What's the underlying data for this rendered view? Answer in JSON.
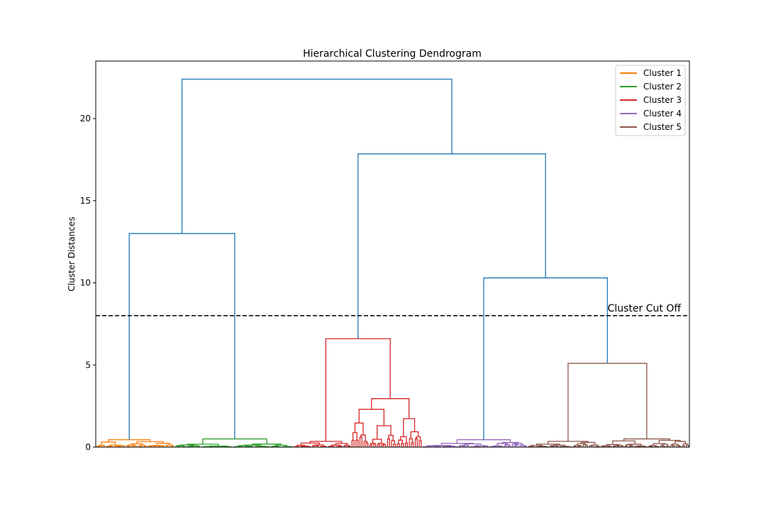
{
  "chart_data": {
    "type": "dendrogram",
    "title": "Hierarchical Clustering Dendrogram",
    "xlabel": "",
    "ylabel": "Cluster Distances",
    "ylim": [
      0,
      23.5
    ],
    "yticks": [
      0,
      5,
      10,
      15,
      20
    ],
    "ytick_labels": [
      "0",
      "5",
      "10",
      "15",
      "20"
    ],
    "leaf_count": 300,
    "cutoff": {
      "value": 8.0,
      "label": "Cluster Cut Off",
      "color": "#000000",
      "style": "dashed"
    },
    "link_color": "#1f77b4",
    "legend": {
      "placement": "top-right",
      "entries": [
        {
          "label": "Cluster 1",
          "color": "#ff7f0e"
        },
        {
          "label": "Cluster 2",
          "color": "#2ca02c"
        },
        {
          "label": "Cluster 3",
          "color": "#d62728"
        },
        {
          "label": "Cluster 4",
          "color": "#9467bd"
        },
        {
          "label": "Cluster 5",
          "color": "#8c564b"
        }
      ]
    },
    "clusters": [
      {
        "name": "Cluster 1",
        "color": "#ff7f0e",
        "leaf_range": [
          0,
          40
        ],
        "top_height": 0.45
      },
      {
        "name": "Cluster 2",
        "color": "#2ca02c",
        "leaf_range": [
          40,
          100
        ],
        "top_height": 0.5
      },
      {
        "name": "Cluster 3",
        "color": "#d62728",
        "leaf_range": [
          100,
          165
        ],
        "top_height": 6.6
      },
      {
        "name": "Cluster 4",
        "color": "#9467bd",
        "leaf_range": [
          165,
          218
        ],
        "top_height": 0.45
      },
      {
        "name": "Cluster 5",
        "color": "#8c564b",
        "leaf_range": [
          218,
          300
        ],
        "top_height": 5.1
      }
    ],
    "merges": [
      {
        "left_leaf_range": [
          0,
          40
        ],
        "right_leaf_range": [
          40,
          100
        ],
        "height": 13.0
      },
      {
        "left_leaf_range": [
          165,
          218
        ],
        "right_leaf_range": [
          218,
          300
        ],
        "height": 10.3
      },
      {
        "left_leaf_range": [
          100,
          165
        ],
        "right_leaf_range": [
          165,
          300
        ],
        "height": 17.85
      },
      {
        "left_leaf_range": [
          0,
          100
        ],
        "right_leaf_range": [
          100,
          300
        ],
        "height": 22.4
      }
    ]
  }
}
